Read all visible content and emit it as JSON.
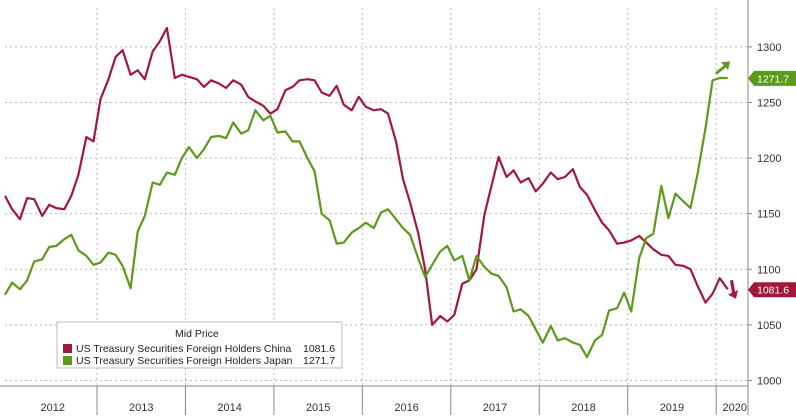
{
  "chart_data": {
    "type": "line",
    "ylim": [
      995,
      1335
    ],
    "xlim": [
      2011.75,
      2020.15
    ],
    "yticks": [
      1000,
      1050,
      1100,
      1150,
      1200,
      1250,
      1300
    ],
    "ytick_labels": [
      "1000",
      "1050",
      "1100",
      "1150",
      "1200",
      "1250",
      "1300"
    ],
    "year_labels": [
      {
        "label": "2012",
        "center": 2012.29
      },
      {
        "label": "2013",
        "center": 2013.29
      },
      {
        "label": "2014",
        "center": 2014.29
      },
      {
        "label": "2015",
        "center": 2015.29
      },
      {
        "label": "2016",
        "center": 2016.29
      },
      {
        "label": "2017",
        "center": 2017.29
      },
      {
        "label": "2018",
        "center": 2018.29
      },
      {
        "label": "2019",
        "center": 2019.29
      },
      {
        "label": "2020",
        "center": 2020.0
      }
    ],
    "year_boundaries": [
      2012.79,
      2013.79,
      2014.79,
      2015.79,
      2016.79,
      2017.79,
      2018.79,
      2019.79
    ],
    "grid": true,
    "legend_position": "bottom-left",
    "legend_title": "Mid Price",
    "series": [
      {
        "name": "US Treasury Securities Foreign Holders China",
        "last_value_label": "1081.6",
        "color": "#a2183a",
        "arrow": "down",
        "x": [
          2011.75,
          2011.83,
          2011.92,
          2012.0,
          2012.08,
          2012.17,
          2012.25,
          2012.33,
          2012.42,
          2012.5,
          2012.58,
          2012.67,
          2012.75,
          2012.83,
          2012.92,
          2013.0,
          2013.08,
          2013.17,
          2013.25,
          2013.33,
          2013.42,
          2013.5,
          2013.58,
          2013.67,
          2013.75,
          2013.83,
          2013.92,
          2014.0,
          2014.08,
          2014.17,
          2014.25,
          2014.33,
          2014.42,
          2014.5,
          2014.58,
          2014.67,
          2014.75,
          2014.83,
          2014.92,
          2015.0,
          2015.08,
          2015.17,
          2015.25,
          2015.33,
          2015.42,
          2015.5,
          2015.58,
          2015.67,
          2015.75,
          2015.83,
          2015.92,
          2016.0,
          2016.08,
          2016.17,
          2016.25,
          2016.33,
          2016.42,
          2016.5,
          2016.58,
          2016.67,
          2016.75,
          2016.83,
          2016.92,
          2017.0,
          2017.08,
          2017.17,
          2017.25,
          2017.33,
          2017.42,
          2017.5,
          2017.58,
          2017.67,
          2017.75,
          2017.83,
          2017.92,
          2018.0,
          2018.08,
          2018.17,
          2018.25,
          2018.33,
          2018.42,
          2018.5,
          2018.58,
          2018.67,
          2018.75,
          2018.83,
          2018.92,
          2019.0,
          2019.08,
          2019.17,
          2019.25,
          2019.33,
          2019.42,
          2019.5,
          2019.58,
          2019.67,
          2019.75,
          2019.83,
          2019.92
        ],
        "y": [
          1166,
          1154,
          1145,
          1164,
          1163,
          1148,
          1158,
          1155,
          1154,
          1166,
          1185,
          1219,
          1215,
          1253,
          1271,
          1291,
          1297,
          1275,
          1279,
          1271,
          1296,
          1305,
          1317,
          1272,
          1275,
          1273,
          1271,
          1264,
          1270,
          1267,
          1263,
          1270,
          1266,
          1255,
          1251,
          1247,
          1240,
          1244,
          1261,
          1264,
          1270,
          1271,
          1270,
          1259,
          1256,
          1265,
          1248,
          1243,
          1255,
          1246,
          1243,
          1244,
          1240,
          1215,
          1181,
          1160,
          1133,
          1100,
          1050,
          1058,
          1053,
          1059,
          1087,
          1090,
          1100,
          1149,
          1175,
          1201,
          1183,
          1189,
          1178,
          1182,
          1170,
          1177,
          1187,
          1181,
          1183,
          1190,
          1174,
          1167,
          1153,
          1142,
          1135,
          1123,
          1124,
          1126,
          1130,
          1124,
          1118,
          1113,
          1112,
          1104,
          1103,
          1100,
          1085,
          1070,
          1078,
          1092,
          1082
        ]
      },
      {
        "name": "US Treasury Securities Foreign Holders Japan",
        "last_value_label": "1271.7",
        "color": "#5c9a1a",
        "arrow": "up",
        "x": [
          2011.75,
          2011.83,
          2011.92,
          2012.0,
          2012.08,
          2012.17,
          2012.25,
          2012.33,
          2012.42,
          2012.5,
          2012.58,
          2012.67,
          2012.75,
          2012.83,
          2012.92,
          2013.0,
          2013.08,
          2013.17,
          2013.25,
          2013.33,
          2013.42,
          2013.5,
          2013.58,
          2013.67,
          2013.75,
          2013.83,
          2013.92,
          2014.0,
          2014.08,
          2014.17,
          2014.25,
          2014.33,
          2014.42,
          2014.5,
          2014.58,
          2014.67,
          2014.75,
          2014.83,
          2014.92,
          2015.0,
          2015.08,
          2015.17,
          2015.25,
          2015.33,
          2015.42,
          2015.5,
          2015.58,
          2015.67,
          2015.75,
          2015.83,
          2015.92,
          2016.0,
          2016.08,
          2016.17,
          2016.25,
          2016.33,
          2016.42,
          2016.5,
          2016.58,
          2016.67,
          2016.75,
          2016.83,
          2016.92,
          2017.0,
          2017.08,
          2017.17,
          2017.25,
          2017.33,
          2017.42,
          2017.5,
          2017.58,
          2017.67,
          2017.75,
          2017.83,
          2017.92,
          2018.0,
          2018.08,
          2018.17,
          2018.25,
          2018.33,
          2018.42,
          2018.5,
          2018.58,
          2018.67,
          2018.75,
          2018.83,
          2018.92,
          2019.0,
          2019.08,
          2019.17,
          2019.25,
          2019.33,
          2019.42,
          2019.5,
          2019.58,
          2019.67,
          2019.75,
          2019.83,
          2019.92
        ],
        "y": [
          1077,
          1088,
          1082,
          1090,
          1107,
          1109,
          1120,
          1121,
          1127,
          1131,
          1117,
          1112,
          1104,
          1106,
          1115,
          1113,
          1103,
          1083,
          1134,
          1148,
          1178,
          1176,
          1187,
          1185,
          1200,
          1210,
          1200,
          1208,
          1219,
          1220,
          1218,
          1232,
          1222,
          1225,
          1243,
          1234,
          1238,
          1223,
          1224,
          1215,
          1215,
          1200,
          1188,
          1150,
          1144,
          1123,
          1124,
          1133,
          1137,
          1142,
          1137,
          1151,
          1154,
          1145,
          1137,
          1131,
          1110,
          1093,
          1104,
          1116,
          1121,
          1108,
          1112,
          1090,
          1112,
          1102,
          1096,
          1094,
          1084,
          1062,
          1064,
          1058,
          1046,
          1034,
          1049,
          1036,
          1038,
          1034,
          1032,
          1021,
          1036,
          1041,
          1063,
          1065,
          1079,
          1062,
          1110,
          1128,
          1132,
          1175,
          1146,
          1168,
          1161,
          1155,
          1186,
          1227,
          1270,
          1272,
          1272
        ]
      }
    ]
  }
}
